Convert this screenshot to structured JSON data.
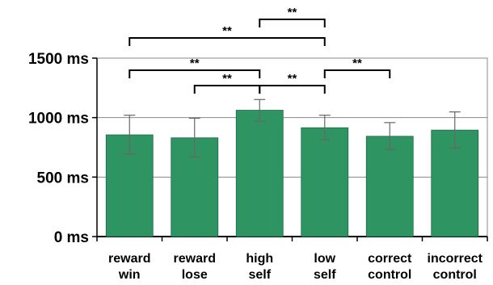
{
  "chart_data": {
    "type": "bar",
    "categories": [
      [
        "reward",
        "win"
      ],
      [
        "reward",
        "lose"
      ],
      [
        "high",
        "self"
      ],
      [
        "low",
        "self"
      ],
      [
        "correct",
        "control"
      ],
      [
        "incorrect",
        "control"
      ]
    ],
    "values": [
      855,
      830,
      1062,
      915,
      843,
      895
    ],
    "error": [
      [
        695,
        1020
      ],
      [
        670,
        995
      ],
      [
        968,
        1152
      ],
      [
        815,
        1020
      ],
      [
        733,
        958
      ],
      [
        745,
        1048
      ]
    ],
    "yticks": [
      0,
      500,
      1000,
      1500
    ],
    "ytick_labels": [
      "0 ms",
      "500 ms",
      "1000 ms",
      "1500 ms"
    ],
    "ylim": [
      0,
      1500
    ],
    "grid": true,
    "bar_color": "#2e9462",
    "significance": [
      {
        "from": 2,
        "to": 3,
        "label": "**"
      },
      {
        "from": 0,
        "to": 3,
        "label": "**"
      },
      {
        "from": 0,
        "to": 2,
        "label": "**"
      },
      {
        "from": 3,
        "to": 4,
        "label": "**"
      },
      {
        "from": 1,
        "to": 2,
        "label": "**"
      },
      {
        "from": 2,
        "to": 3,
        "label": "**"
      }
    ]
  }
}
